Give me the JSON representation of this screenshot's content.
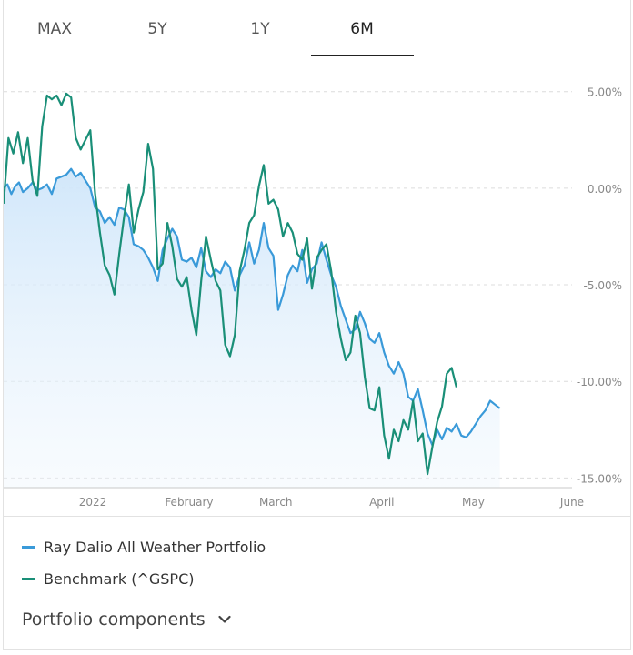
{
  "tabs": [
    {
      "label": "MAX",
      "active": false
    },
    {
      "label": "5Y",
      "active": false
    },
    {
      "label": "1Y",
      "active": false
    },
    {
      "label": "6M",
      "active": true
    }
  ],
  "legend": {
    "portfolio_label": "Ray Dalio All Weather Portfolio",
    "benchmark_label": "Benchmark (^GSPC)"
  },
  "components": {
    "label": "Portfolio components",
    "chevron_icon": "chevron-down-icon"
  },
  "colors": {
    "portfolio": "#3a9ad9",
    "benchmark": "#1a8f78",
    "area_top": "#cfe6fa",
    "grid": "#dcdcdc",
    "tick_text": "#888888"
  },
  "chart_data": {
    "type": "line",
    "ylim": [
      -15.5,
      5.6
    ],
    "xlim": [
      0,
      118
    ],
    "y_ticks": [
      {
        "value": 5,
        "label": "5.00%"
      },
      {
        "value": 0,
        "label": "0.00%"
      },
      {
        "value": -5,
        "label": "-5.00%"
      },
      {
        "value": -10,
        "label": "-10.00%"
      },
      {
        "value": -15,
        "label": "-15.00%"
      }
    ],
    "x_ticks": [
      {
        "value": 18.5,
        "label": "2022"
      },
      {
        "value": 38.5,
        "label": "February"
      },
      {
        "value": 56.5,
        "label": "March"
      },
      {
        "value": 78.5,
        "label": "April"
      },
      {
        "value": 97.5,
        "label": "May"
      },
      {
        "value": 118,
        "label": "June"
      }
    ],
    "series": [
      {
        "name": "Ray Dalio All Weather Portfolio",
        "color": "#3a9ad9",
        "area": true,
        "values": [
          0.0,
          0.2,
          -0.3,
          0.1,
          0.3,
          -0.2,
          0.0,
          0.3,
          -0.1,
          0.0,
          0.2,
          -0.3,
          0.5,
          0.6,
          0.7,
          1.0,
          0.6,
          0.8,
          0.4,
          0.0,
          -1.0,
          -1.2,
          -1.8,
          -1.5,
          -1.9,
          -1.0,
          -1.1,
          -1.5,
          -2.9,
          -3.0,
          -3.2,
          -3.6,
          -4.1,
          -4.8,
          -3.2,
          -2.6,
          -2.1,
          -2.5,
          -3.7,
          -3.8,
          -3.6,
          -4.1,
          -3.1,
          -4.3,
          -4.6,
          -4.2,
          -4.4,
          -3.8,
          -4.1,
          -5.3,
          -4.5,
          -4.0,
          -2.8,
          -3.9,
          -3.2,
          -1.8,
          -3.1,
          -3.5,
          -6.3,
          -5.5,
          -4.5,
          -4.0,
          -4.3,
          -3.2,
          -4.9,
          -4.2,
          -3.9,
          -2.8,
          -3.7,
          -4.5,
          -5.1,
          -6.1,
          -6.8,
          -7.5,
          -7.3,
          -6.4,
          -7.0,
          -7.8,
          -8.0,
          -7.5,
          -8.5,
          -9.2,
          -9.6,
          -9.0,
          -9.6,
          -10.8,
          -11.0,
          -10.4,
          -11.5,
          -12.7,
          -13.3,
          -12.5,
          -13.0,
          -12.4,
          -12.6,
          -12.2,
          -12.8,
          -12.9,
          -12.6,
          -12.2,
          -11.8,
          -11.5,
          -11.0,
          -11.2,
          -11.4
        ],
        "x": [
          0,
          0.8,
          1.6,
          2.4,
          3.2,
          4,
          5,
          6,
          7,
          8,
          9,
          10,
          11,
          12,
          13,
          14,
          15,
          16,
          17,
          18,
          19,
          20,
          21,
          22,
          23,
          24,
          25,
          26,
          27,
          28,
          29,
          30,
          31,
          32,
          33,
          34,
          35,
          36,
          37,
          38,
          39,
          40,
          41,
          42,
          43,
          44,
          45,
          46,
          47,
          48,
          49,
          50,
          51,
          52,
          53,
          54,
          55,
          56,
          57,
          58,
          59,
          60,
          61,
          62,
          63,
          64,
          65,
          66,
          67,
          68,
          69,
          70,
          71,
          72,
          73,
          74,
          75,
          76,
          77,
          78,
          79,
          80,
          81,
          82,
          83,
          84,
          85,
          86,
          87,
          88,
          89,
          90,
          91,
          92,
          93,
          94,
          95,
          96,
          97,
          98,
          99,
          100,
          101,
          102,
          103
        ]
      },
      {
        "name": "Benchmark (^GSPC)",
        "color": "#1a8f78",
        "area": false,
        "values": [
          -0.8,
          2.6,
          1.8,
          2.9,
          1.3,
          2.6,
          0.4,
          -0.4,
          3.2,
          4.8,
          4.6,
          4.8,
          4.3,
          4.9,
          4.7,
          2.6,
          2.0,
          2.5,
          3.0,
          -0.3,
          -2.3,
          -4.0,
          -4.5,
          -5.5,
          -3.4,
          -1.5,
          0.2,
          -2.3,
          -1.1,
          -0.2,
          2.3,
          1.0,
          -4.2,
          -3.9,
          -1.8,
          -3.0,
          -4.7,
          -5.1,
          -4.6,
          -6.3,
          -7.6,
          -4.8,
          -2.5,
          -3.7,
          -4.8,
          -5.3,
          -8.1,
          -8.7,
          -7.6,
          -4.3,
          -3.2,
          -1.8,
          -1.4,
          0.1,
          1.2,
          -0.8,
          -0.6,
          -1.1,
          -2.5,
          -1.8,
          -2.3,
          -3.4,
          -3.7,
          -2.6,
          -5.2,
          -3.6,
          -3.2,
          -2.9,
          -4.3,
          -6.4,
          -7.8,
          -8.9,
          -8.5,
          -6.6,
          -7.5,
          -9.8,
          -11.4,
          -11.5,
          -10.3,
          -12.8,
          -14.0,
          -12.5,
          -13.1,
          -12.0,
          -12.5,
          -11.0,
          -13.1,
          -12.7,
          -14.8,
          -13.4,
          -12.1,
          -11.3,
          -9.6,
          -9.3,
          -10.3
        ],
        "x": [
          0,
          1,
          2,
          3,
          4,
          5,
          6,
          7,
          8,
          9,
          10,
          11,
          12,
          13,
          14,
          15,
          16,
          17,
          18,
          19,
          20,
          21,
          22,
          23,
          24,
          25,
          26,
          27,
          28,
          29,
          30,
          31,
          32,
          33,
          34,
          35,
          36,
          37,
          38,
          39,
          40,
          41,
          42,
          43,
          44,
          45,
          46,
          47,
          48,
          49,
          50,
          51,
          52,
          53,
          54,
          55,
          56,
          57,
          58,
          59,
          60,
          61,
          62,
          63,
          64,
          65,
          66,
          67,
          68,
          69,
          70,
          71,
          72,
          73,
          74,
          75,
          76,
          77,
          78,
          79,
          80,
          81,
          82,
          83,
          84,
          85,
          86,
          87,
          88,
          89,
          90,
          91,
          92,
          93,
          94
        ]
      }
    ]
  }
}
